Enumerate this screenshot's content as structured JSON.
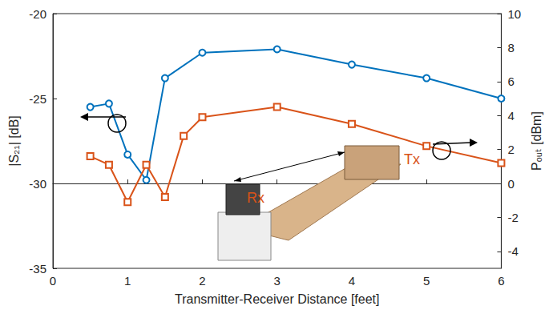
{
  "chart_data": {
    "type": "line",
    "x_label": "Transmitter-Receiver Distance [feet]",
    "y_label": "|S₂₁| [dB]",
    "y2_label": "Pₒᵤₜ [dBm]",
    "xlim": [
      0,
      6
    ],
    "xticks": [
      0,
      1,
      2,
      3,
      4,
      5,
      6
    ],
    "ylim": [
      -35,
      -20
    ],
    "yticks": [
      -35,
      -30,
      -25,
      -20
    ],
    "y2lim": [
      -5,
      10
    ],
    "y2ticks": [
      -4,
      -2,
      0,
      2,
      4,
      6,
      8,
      10
    ],
    "grid": false,
    "annotations": [
      "Rx",
      "Tx"
    ],
    "series": [
      {
        "color": "#0072BD",
        "marker": "circle",
        "axis": "y",
        "x": [
          0.5,
          0.75,
          1,
          1.25,
          1.5,
          2,
          3,
          4,
          5,
          6
        ],
        "values": [
          -25.5,
          -25.3,
          -28.3,
          -29.8,
          -23.8,
          -22.3,
          -22.1,
          -23.0,
          -23.8,
          -25.0
        ]
      },
      {
        "color": "#D95319",
        "marker": "square",
        "axis": "y2",
        "x": [
          0.5,
          0.75,
          1,
          1.25,
          1.5,
          1.75,
          2,
          3,
          4,
          5,
          6
        ],
        "values": [
          1.6,
          1.1,
          -1.1,
          1.1,
          -0.8,
          2.8,
          3.9,
          4.5,
          3.5,
          2.2,
          1.2
        ]
      }
    ]
  }
}
